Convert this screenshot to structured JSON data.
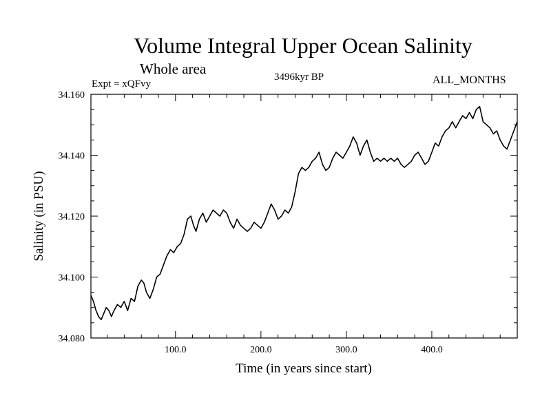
{
  "header": {
    "title": "Volume Integral Upper Ocean Salinity",
    "subtitle": "Whole area",
    "left_label": "Expt = xQFvy",
    "center_label": "3496kyr BP",
    "right_label": "ALL_MONTHS"
  },
  "chart_data": {
    "type": "line",
    "title": "Volume Integral Upper Ocean Salinity",
    "subtitle": "Whole area",
    "xlabel": "Time (in years since start)",
    "ylabel": "Salinity (in PSU)",
    "xlim": [
      1,
      500
    ],
    "ylim": [
      34.08,
      34.16
    ],
    "x_ticks": [
      100,
      200,
      300,
      400
    ],
    "x_tick_labels": [
      "100.0",
      "200.0",
      "300.0",
      "400.0"
    ],
    "y_ticks": [
      34.08,
      34.1,
      34.12,
      34.14,
      34.16
    ],
    "y_tick_labels": [
      "34.080",
      "34.100",
      "34.120",
      "34.140",
      "34.160"
    ],
    "grid": false,
    "series": [
      {
        "name": "Salinity",
        "color": "#000000",
        "x": [
          1,
          4,
          7,
          10,
          13,
          16,
          19,
          22,
          25,
          28,
          32,
          36,
          40,
          44,
          48,
          52,
          56,
          60,
          63,
          66,
          70,
          74,
          78,
          82,
          86,
          90,
          94,
          98,
          102,
          106,
          110,
          114,
          118,
          121,
          124,
          128,
          132,
          136,
          140,
          144,
          148,
          152,
          156,
          160,
          164,
          168,
          172,
          176,
          180,
          184,
          188,
          192,
          196,
          200,
          204,
          208,
          212,
          216,
          220,
          224,
          228,
          232,
          236,
          240,
          244,
          248,
          252,
          256,
          260,
          264,
          268,
          272,
          276,
          280,
          284,
          288,
          292,
          296,
          300,
          304,
          308,
          312,
          316,
          320,
          324,
          328,
          332,
          336,
          340,
          344,
          348,
          352,
          356,
          360,
          364,
          368,
          372,
          376,
          380,
          384,
          388,
          392,
          396,
          400,
          404,
          408,
          412,
          416,
          420,
          424,
          428,
          432,
          436,
          440,
          444,
          448,
          452,
          456,
          460,
          464,
          468,
          472,
          476,
          480,
          484,
          488,
          492,
          496,
          500
        ],
        "values": [
          34.094,
          34.092,
          34.089,
          34.087,
          34.086,
          34.088,
          34.09,
          34.089,
          34.087,
          34.089,
          34.091,
          34.09,
          34.092,
          34.089,
          34.093,
          34.092,
          34.097,
          34.099,
          34.098,
          34.095,
          34.093,
          34.096,
          34.1,
          34.101,
          34.104,
          34.107,
          34.109,
          34.108,
          34.11,
          34.111,
          34.114,
          34.119,
          34.12,
          34.117,
          34.115,
          34.119,
          34.121,
          34.118,
          34.12,
          34.122,
          34.121,
          34.12,
          34.122,
          34.121,
          34.118,
          34.116,
          34.119,
          34.117,
          34.116,
          34.115,
          34.116,
          34.118,
          34.117,
          34.116,
          34.118,
          34.121,
          34.124,
          34.122,
          34.119,
          34.12,
          34.122,
          34.121,
          34.123,
          34.128,
          34.134,
          34.136,
          34.135,
          34.136,
          34.138,
          34.139,
          34.141,
          34.137,
          34.135,
          34.136,
          34.139,
          34.141,
          34.14,
          34.139,
          34.141,
          34.143,
          34.146,
          34.144,
          34.14,
          34.143,
          34.145,
          34.141,
          34.138,
          34.139,
          34.138,
          34.139,
          34.138,
          34.139,
          34.138,
          34.139,
          34.137,
          34.136,
          34.137,
          34.138,
          34.14,
          34.141,
          34.139,
          34.137,
          34.138,
          34.141,
          34.144,
          34.143,
          34.146,
          34.148,
          34.149,
          34.151,
          34.149,
          34.151,
          34.153,
          34.152,
          34.154,
          34.152,
          34.155,
          34.156,
          34.151,
          34.15,
          34.149,
          34.147,
          34.148,
          34.145,
          34.143,
          34.142,
          34.145,
          34.148,
          34.151
        ]
      }
    ]
  }
}
